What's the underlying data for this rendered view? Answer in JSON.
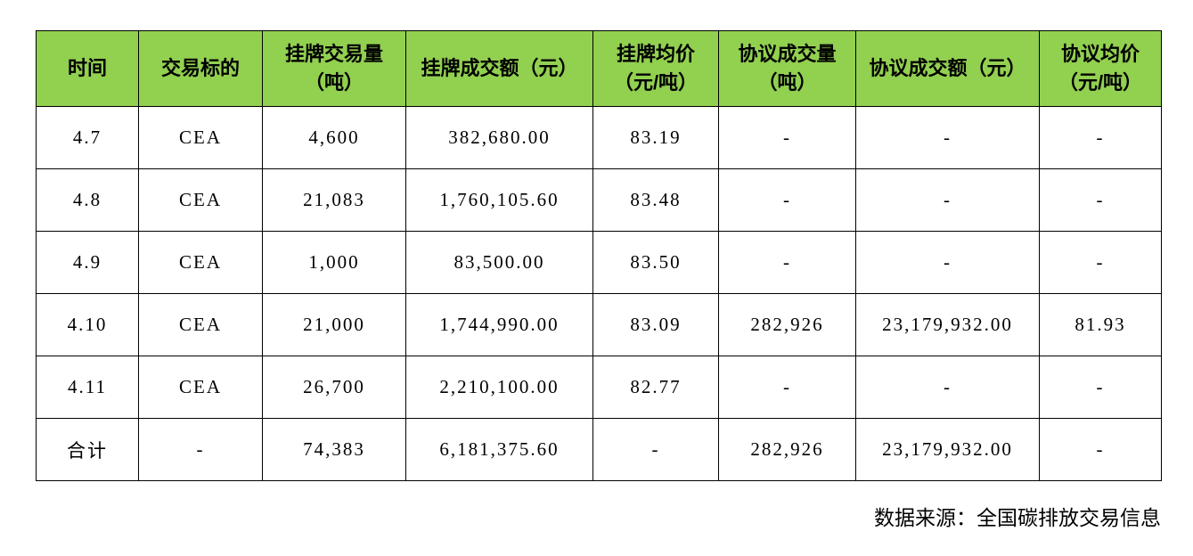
{
  "colors": {
    "header_bg": "#92D050",
    "border": "#000000",
    "text": "#000000",
    "page_bg": "#FFFFFF"
  },
  "chart_data": {
    "type": "table",
    "columns": [
      {
        "label": "时间",
        "sub": ""
      },
      {
        "label": "交易标的",
        "sub": ""
      },
      {
        "label": "挂牌交易量",
        "sub": "（吨）"
      },
      {
        "label": "挂牌成交额（元）",
        "sub": ""
      },
      {
        "label": "挂牌均价",
        "sub": "（元/吨）"
      },
      {
        "label": "协议成交量",
        "sub": "（吨）"
      },
      {
        "label": "协议成交额（元）",
        "sub": ""
      },
      {
        "label": "协议均价",
        "sub": "（元/吨）"
      }
    ],
    "rows": [
      [
        "4.7",
        "CEA",
        "4,600",
        "382,680.00",
        "83.19",
        "-",
        "-",
        "-"
      ],
      [
        "4.8",
        "CEA",
        "21,083",
        "1,760,105.60",
        "83.48",
        "-",
        "-",
        "-"
      ],
      [
        "4.9",
        "CEA",
        "1,000",
        "83,500.00",
        "83.50",
        "-",
        "-",
        "-"
      ],
      [
        "4.10",
        "CEA",
        "21,000",
        "1,744,990.00",
        "83.09",
        "282,926",
        "23,179,932.00",
        "81.93"
      ],
      [
        "4.11",
        "CEA",
        "26,700",
        "2,210,100.00",
        "82.77",
        "-",
        "-",
        "-"
      ],
      [
        "合计",
        "-",
        "74,383",
        "6,181,375.60",
        "-",
        "282,926",
        "23,179,932.00",
        "-"
      ]
    ]
  },
  "footer": {
    "source": "数据来源：全国碳排放交易信息"
  }
}
